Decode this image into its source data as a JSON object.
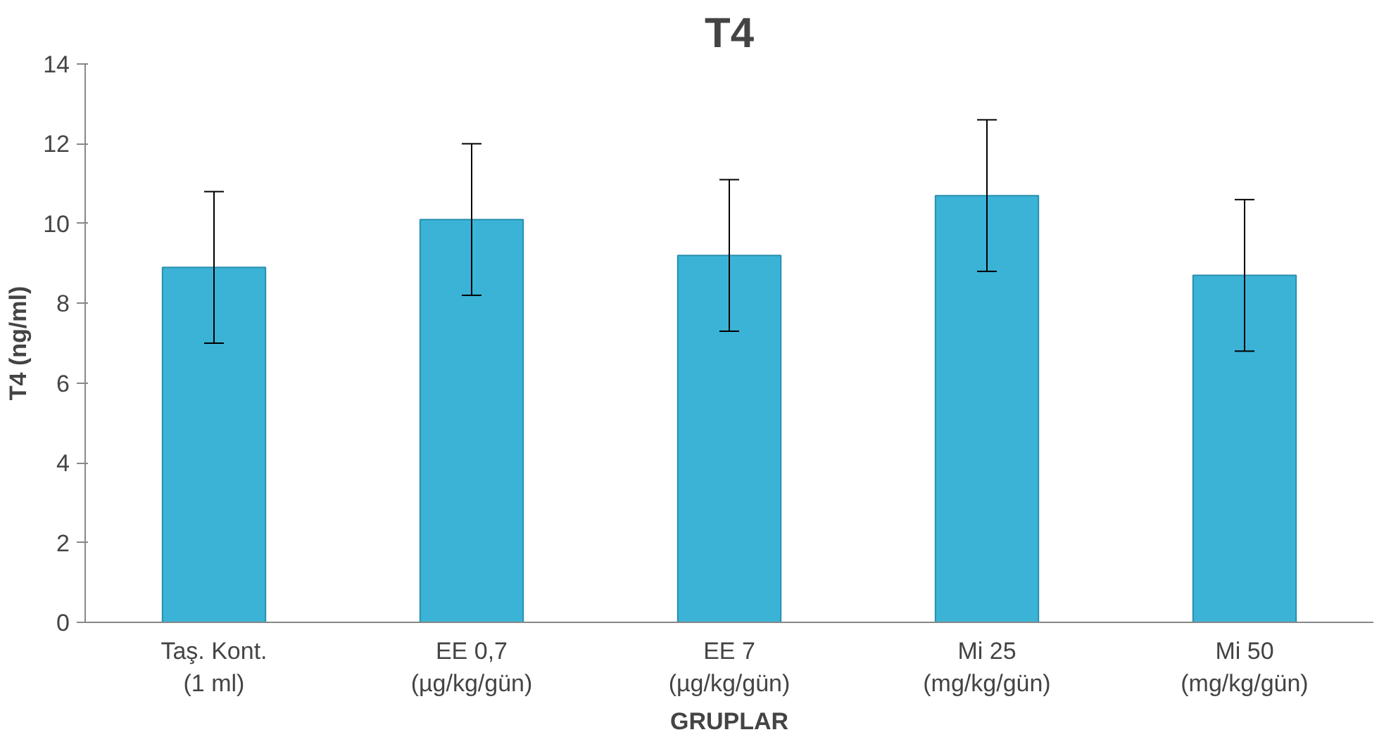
{
  "chart_data": {
    "type": "bar",
    "title": "T4",
    "xlabel": "GRUPLAR",
    "ylabel": "T4 (ng/ml)",
    "categories": [
      "Taş. Kont.\n(1 ml)",
      "EE 0,7\n(µg/kg/gün)",
      "EE 7\n(µg/kg/gün)",
      "Mi 25\n(mg/kg/gün)",
      "Mi 50\n(mg/kg/gün)"
    ],
    "values": [
      8.9,
      10.1,
      9.2,
      10.7,
      8.7
    ],
    "errors": [
      1.9,
      1.9,
      1.9,
      1.9,
      1.9
    ],
    "color": "#3bb3d6",
    "ylim": [
      0,
      14
    ],
    "yticks": [
      0,
      2,
      4,
      6,
      8,
      10,
      12,
      14
    ],
    "grid": false
  }
}
